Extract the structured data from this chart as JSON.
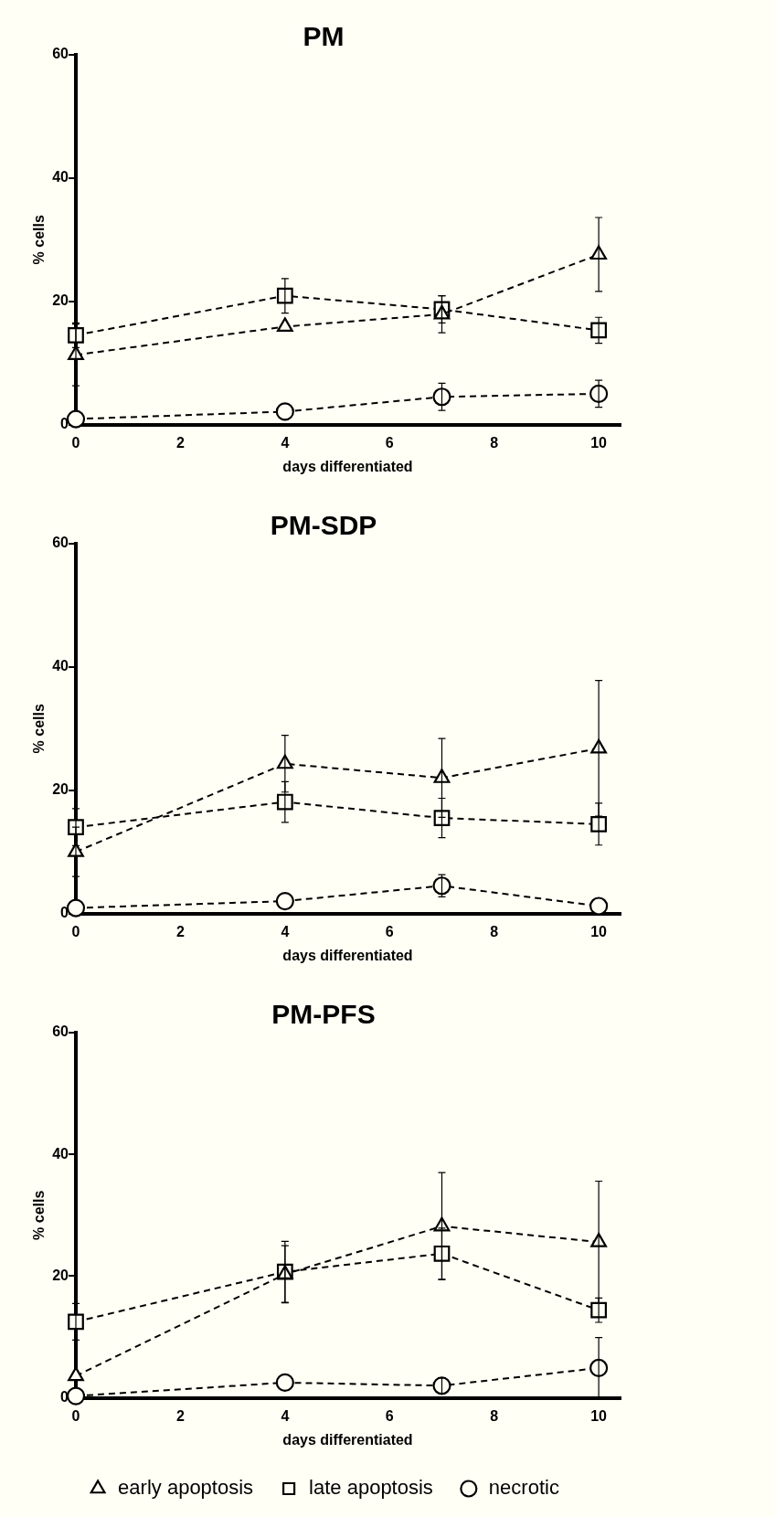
{
  "chart_data": [
    {
      "type": "line",
      "title": "PM",
      "xlabel": "days differentiated",
      "ylabel": "% cells",
      "x": [
        0,
        4,
        7,
        10
      ],
      "xlim": [
        0,
        10.4
      ],
      "xticks": [
        0,
        2,
        4,
        6,
        8,
        10
      ],
      "ylim": [
        0,
        60
      ],
      "yticks": [
        0,
        20,
        40,
        60
      ],
      "grid": false,
      "legend": false,
      "line_style": "dashed",
      "series": [
        {
          "color": "#000000",
          "marker": "triangle",
          "values": [
            11.3,
            15.9,
            17.9,
            27.6
          ],
          "errors": [
            5,
            null,
            3,
            6
          ]
        },
        {
          "color": "#000000",
          "marker": "square",
          "values": [
            14.5,
            20.9,
            18.7,
            15.3
          ],
          "errors": [
            2,
            2.8,
            2.2,
            2.1
          ]
        },
        {
          "color": "#000000",
          "marker": "circle",
          "values": [
            0.9,
            2.1,
            4.5,
            5.0
          ],
          "errors": [
            null,
            null,
            2.2,
            2.2
          ]
        }
      ]
    },
    {
      "type": "line",
      "title": "PM-SDP",
      "xlabel": "days differentiated",
      "ylabel": "% cells",
      "x": [
        0,
        4,
        7,
        10
      ],
      "xlim": [
        0,
        10.4
      ],
      "xticks": [
        0,
        2,
        4,
        6,
        8,
        10
      ],
      "ylim": [
        0,
        60
      ],
      "yticks": [
        0,
        20,
        40,
        60
      ],
      "grid": false,
      "legend": false,
      "line_style": "dashed",
      "series": [
        {
          "color": "#000000",
          "marker": "triangle",
          "values": [
            10.0,
            24.3,
            22.0,
            26.8
          ],
          "errors": [
            4,
            4.6,
            6.4,
            11
          ]
        },
        {
          "color": "#000000",
          "marker": "square",
          "values": [
            14.0,
            18.1,
            15.5,
            14.5
          ],
          "errors": [
            3,
            3.3,
            3.2,
            3.4
          ]
        },
        {
          "color": "#000000",
          "marker": "circle",
          "values": [
            0.9,
            2.0,
            4.5,
            1.2
          ],
          "errors": [
            null,
            null,
            1.8,
            null
          ]
        }
      ]
    },
    {
      "type": "line",
      "title": "PM-PFS",
      "xlabel": "days differentiated",
      "ylabel": "% cells",
      "x": [
        0,
        4,
        7,
        10
      ],
      "xlim": [
        0,
        10.4
      ],
      "xticks": [
        0,
        2,
        4,
        6,
        8,
        10
      ],
      "ylim": [
        0,
        60
      ],
      "yticks": [
        0,
        20,
        40,
        60
      ],
      "grid": false,
      "legend": "bottom",
      "line_style": "dashed",
      "series": [
        {
          "name": "early apoptosis",
          "color": "#000000",
          "marker": "triangle",
          "values": [
            3.6,
            20.3,
            28.2,
            25.6
          ],
          "errors": [
            null,
            4.7,
            8.8,
            10
          ]
        },
        {
          "name": "late apoptosis",
          "color": "#000000",
          "marker": "square",
          "values": [
            12.5,
            20.7,
            23.7,
            14.4
          ],
          "errors": [
            3,
            5,
            4.2,
            2
          ]
        },
        {
          "name": "necrotic",
          "color": "#000000",
          "marker": "circle",
          "values": [
            0.3,
            2.5,
            2.0,
            4.9
          ],
          "errors": [
            null,
            null,
            1.3,
            5
          ]
        }
      ]
    }
  ]
}
